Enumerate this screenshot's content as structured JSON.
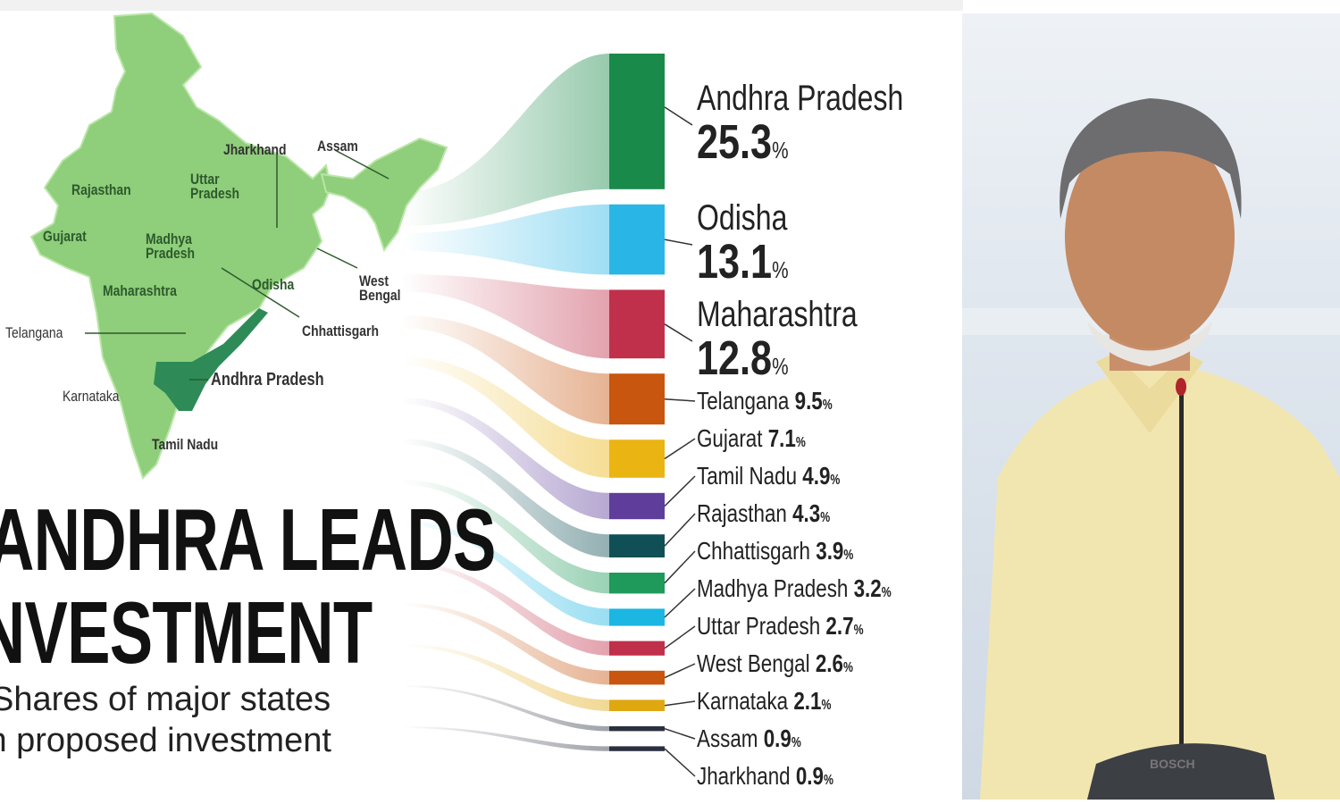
{
  "chart_data": {
    "type": "bar",
    "title": "ANDHRA LEADS INVESTMENT",
    "subtitle": "Shares of major states in proposed investment",
    "unit": "%",
    "categories": [
      "Andhra Pradesh",
      "Odisha",
      "Maharashtra",
      "Telangana",
      "Gujarat",
      "Tamil Nadu",
      "Rajasthan",
      "Chhattisgarh",
      "Madhya Pradesh",
      "Uttar Pradesh",
      "West Bengal",
      "Karnataka",
      "Assam",
      "Jharkhand"
    ],
    "values": [
      25.3,
      13.1,
      12.8,
      9.5,
      7.1,
      4.9,
      4.3,
      3.9,
      3.2,
      2.7,
      2.6,
      2.1,
      0.9,
      0.9
    ],
    "colors": [
      "#1a8a4a",
      "#29b6e6",
      "#c0304a",
      "#c8560f",
      "#eab413",
      "#5e3e9a",
      "#0f4f55",
      "#1f9a5a",
      "#1bb6e2",
      "#c0304a",
      "#c8560f",
      "#e0a810",
      "#2a3040",
      "#2a3040"
    ],
    "title_lines": [
      "ANDHRA LEADS",
      "INVESTMENT"
    ],
    "subtitle_lines": [
      "Shares of major states",
      "in proposed investment"
    ],
    "map_labels": [
      "Jharkhand",
      "Assam",
      "Rajasthan",
      "Uttar Pradesh",
      "Gujarat",
      "Madhya Pradesh",
      "Odisha",
      "West Bengal",
      "Maharashtra",
      "Chhattisgarh",
      "Telangana",
      "Andhra Pradesh",
      "Karnataka",
      "Tamil Nadu"
    ],
    "highlight_color": "#2e8b57",
    "map_color": "#8fce7a"
  },
  "photo": {
    "microphone_brand": "BOSCH"
  }
}
